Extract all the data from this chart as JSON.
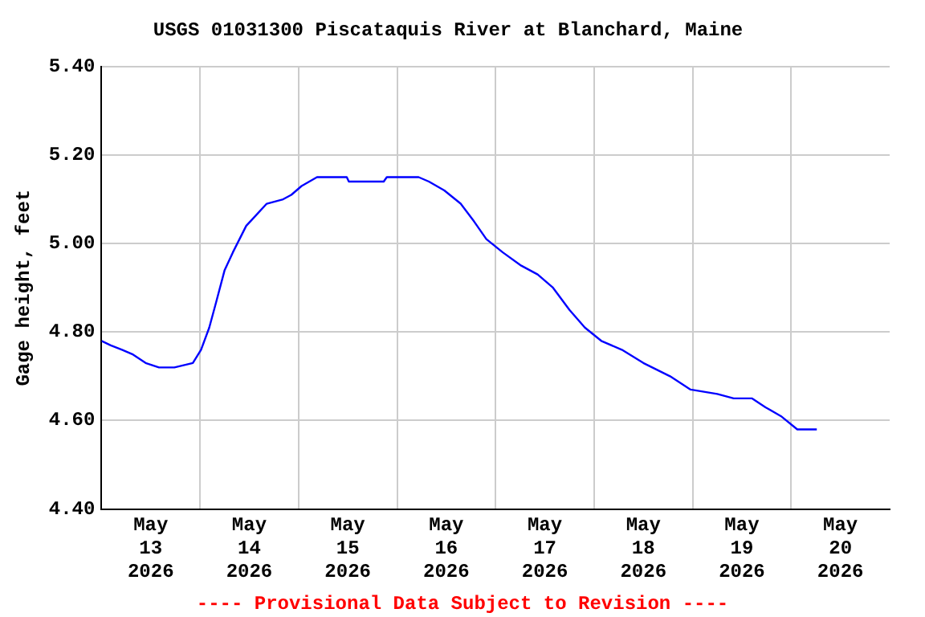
{
  "chart_data": {
    "type": "line",
    "title": "USGS 01031300 Piscataquis River at Blanchard, Maine",
    "ylabel": "Gage height, feet",
    "annotations": [
      "---- Provisional Data Subject to Revision ----"
    ],
    "x": [
      "2026-05-13T00:00",
      "2026-05-13T02:15",
      "2026-05-13T05:00",
      "2026-05-13T07:30",
      "2026-05-13T10:45",
      "2026-05-13T14:00",
      "2026-05-13T17:45",
      "2026-05-13T22:15",
      "2026-05-14T00:15",
      "2026-05-14T02:15",
      "2026-05-14T04:00",
      "2026-05-14T06:00",
      "2026-05-14T08:00",
      "2026-05-14T11:15",
      "2026-05-14T13:15",
      "2026-05-14T16:15",
      "2026-05-14T20:15",
      "2026-05-14T22:15",
      "2026-05-15T00:45",
      "2026-05-15T04:30",
      "2026-05-15T11:45",
      "2026-05-15T12:15",
      "2026-05-15T20:45",
      "2026-05-15T21:30",
      "2026-05-16T05:15",
      "2026-05-16T07:45",
      "2026-05-16T11:30",
      "2026-05-16T15:30",
      "2026-05-16T18:45",
      "2026-05-16T21:45",
      "2026-05-17T01:45",
      "2026-05-17T06:15",
      "2026-05-17T10:15",
      "2026-05-17T14:00",
      "2026-05-17T18:00",
      "2026-05-17T21:45",
      "2026-05-18T01:45",
      "2026-05-18T06:45",
      "2026-05-18T12:00",
      "2026-05-18T18:30",
      "2026-05-18T23:30",
      "2026-05-19T06:00",
      "2026-05-19T10:00",
      "2026-05-19T14:30",
      "2026-05-19T17:45",
      "2026-05-19T21:30",
      "2026-05-20T01:30",
      "2026-05-20T06:15"
    ],
    "series": [
      {
        "color": "#0000ff",
        "values": [
          4.78,
          4.77,
          4.76,
          4.75,
          4.73,
          4.72,
          4.72,
          4.73,
          4.76,
          4.81,
          4.87,
          4.94,
          4.98,
          5.04,
          5.06,
          5.09,
          5.1,
          5.11,
          5.13,
          5.15,
          5.15,
          5.14,
          5.14,
          5.15,
          5.15,
          5.14,
          5.12,
          5.09,
          5.05,
          5.01,
          4.98,
          4.95,
          4.93,
          4.9,
          4.85,
          4.81,
          4.78,
          4.76,
          4.73,
          4.7,
          4.67,
          4.66,
          4.65,
          4.65,
          4.63,
          4.61,
          4.58,
          4.58
        ]
      }
    ],
    "xlim": [
      "2026-05-13T00:00",
      "2026-05-21T00:00"
    ],
    "xticks": [
      {
        "value": "2026-05-14T00:00",
        "label": null
      },
      {
        "value": "2026-05-15T00:00",
        "label": null
      },
      {
        "value": "2026-05-16T00:00",
        "label": null
      },
      {
        "value": "2026-05-17T00:00",
        "label": null
      },
      {
        "value": "2026-05-18T00:00",
        "label": null
      },
      {
        "value": "2026-05-19T00:00",
        "label": null
      },
      {
        "value": "2026-05-20T00:00",
        "label": null
      },
      {
        "value": "2026-05-13T12:00",
        "label": "May\n13\n2026"
      },
      {
        "value": "2026-05-14T12:00",
        "label": "May\n14\n2026"
      },
      {
        "value": "2026-05-15T12:00",
        "label": "May\n15\n2026"
      },
      {
        "value": "2026-05-16T12:00",
        "label": "May\n16\n2026"
      },
      {
        "value": "2026-05-17T12:00",
        "label": "May\n17\n2026"
      },
      {
        "value": "2026-05-18T12:00",
        "label": "May\n18\n2026"
      },
      {
        "value": "2026-05-19T12:00",
        "label": "May\n19\n2026"
      },
      {
        "value": "2026-05-20T12:00",
        "label": "May\n20\n2026"
      }
    ],
    "ylim": [
      4.4,
      5.4
    ],
    "yticks": [
      {
        "value": 4.4,
        "label": "4.40"
      },
      {
        "value": 4.6,
        "label": "4.60"
      },
      {
        "value": 4.8,
        "label": "4.80"
      },
      {
        "value": 5.0,
        "label": "5.00"
      },
      {
        "value": 5.2,
        "label": "5.20"
      },
      {
        "value": 5.4,
        "label": "5.40"
      }
    ],
    "grid": true,
    "legend": false,
    "marker": "none",
    "line_style": "solid"
  }
}
